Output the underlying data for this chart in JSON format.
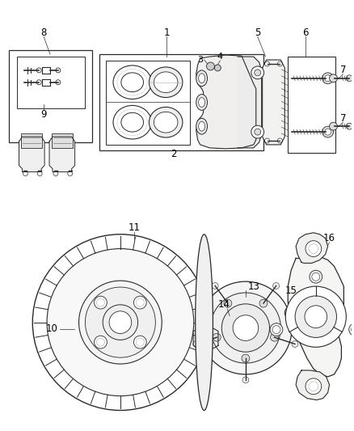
{
  "bg_color": "#ffffff",
  "fig_width": 4.38,
  "fig_height": 5.33,
  "dpi": 100,
  "line_color": "#2a2a2a",
  "font_size": 8.5,
  "font_size_small": 7.5
}
